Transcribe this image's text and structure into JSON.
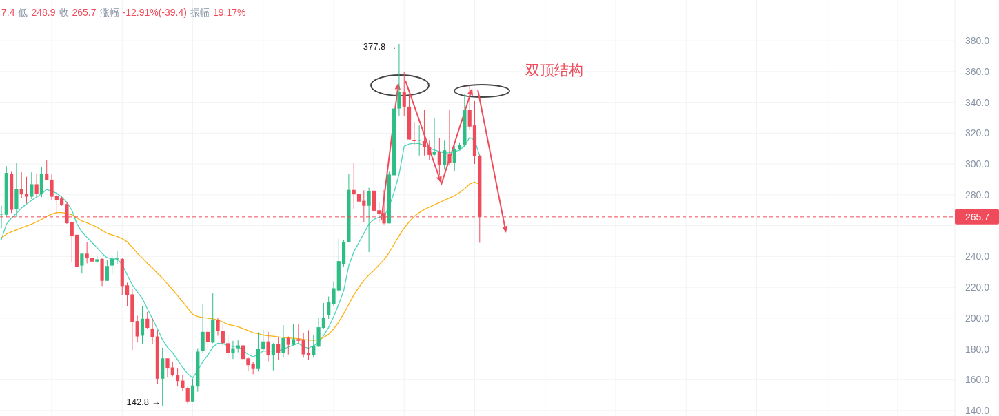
{
  "chart_data": {
    "type": "candlestick",
    "categories": [
      null,
      null,
      null,
      null,
      null,
      null,
      null,
      null,
      null,
      null,
      null,
      null,
      null,
      null,
      null,
      null,
      null,
      null,
      null,
      null,
      null,
      null,
      null,
      null,
      null,
      null,
      null,
      null,
      null,
      null,
      null,
      null,
      null,
      null,
      null,
      null,
      null,
      null,
      null,
      null,
      null,
      null,
      null,
      null,
      null,
      null,
      null,
      null,
      null,
      null,
      null,
      null,
      null,
      null,
      null,
      null,
      null,
      null,
      null,
      null,
      null,
      null,
      null,
      null,
      null,
      null,
      null,
      null,
      null,
      null,
      null,
      null,
      null,
      null,
      null,
      null,
      null,
      null,
      null,
      null,
      null,
      null,
      null,
      null,
      null,
      null,
      null,
      null,
      null,
      null,
      null,
      null,
      null,
      null,
      null,
      null
    ],
    "ohlc": [
      [
        267.2,
        272.9,
        258.3,
        267.8
      ],
      [
        267.1,
        298.6,
        265.6,
        294.2
      ],
      [
        293.8,
        294.9,
        268.2,
        270.3
      ],
      [
        270.6,
        300.8,
        265.6,
        283.5
      ],
      [
        283.9,
        294.6,
        278.1,
        280.3
      ],
      [
        280.6,
        291.7,
        274.4,
        278.8
      ],
      [
        278.8,
        294.6,
        277.3,
        286.9
      ],
      [
        286.9,
        293.8,
        278.5,
        280.7
      ],
      [
        280.7,
        297.9,
        278.5,
        293.8
      ],
      [
        293.8,
        302.6,
        289.4,
        289.5
      ],
      [
        289.8,
        293.2,
        276.6,
        278.8
      ],
      [
        279.2,
        281,
        267.8,
        276.6
      ],
      [
        277.6,
        278.8,
        272.9,
        273.7
      ],
      [
        274,
        275.6,
        261.2,
        261.6
      ],
      [
        262.2,
        262.7,
        236.3,
        253.1
      ],
      [
        254.1,
        254.6,
        232.1,
        233.3
      ],
      [
        234.1,
        241.8,
        228.9,
        241.8
      ],
      [
        241.8,
        249.2,
        235.5,
        238.9
      ],
      [
        239.2,
        245.1,
        235.5,
        236.7
      ],
      [
        236.7,
        240.2,
        235.8,
        238.2
      ],
      [
        238.4,
        239.2,
        220.8,
        224.2
      ],
      [
        224.2,
        237.7,
        224.2,
        233.8
      ],
      [
        234.1,
        239.9,
        228.6,
        238.4
      ],
      [
        238.2,
        243.3,
        235.2,
        238.7
      ],
      [
        238.4,
        238.9,
        214.7,
        220.8
      ],
      [
        221.3,
        223,
        207.6,
        215
      ],
      [
        215.4,
        219.1,
        179.3,
        197.7
      ],
      [
        198.1,
        201.5,
        184.2,
        188.1
      ],
      [
        188.6,
        207.6,
        183.1,
        199.6
      ],
      [
        199.6,
        204,
        193.2,
        193.7
      ],
      [
        193.3,
        200.3,
        183.4,
        187.8
      ],
      [
        188.1,
        192.2,
        157.5,
        160.7
      ],
      [
        160.7,
        180.8,
        142.8,
        173.9
      ],
      [
        173.9,
        173.9,
        161.4,
        167.3
      ],
      [
        168,
        171.7,
        162.2,
        162.9
      ],
      [
        163.3,
        167.3,
        155.6,
        159.2
      ],
      [
        159.5,
        162.9,
        152.9,
        154.4
      ],
      [
        154.8,
        155.6,
        144.1,
        146
      ],
      [
        146,
        160.7,
        145.7,
        156.3
      ],
      [
        155.6,
        180.5,
        152.3,
        178.3
      ],
      [
        178.6,
        209.1,
        177.3,
        191.1
      ],
      [
        191.1,
        193,
        179.8,
        184.5
      ],
      [
        184.2,
        216,
        183.7,
        199.1
      ],
      [
        198.8,
        200.3,
        188.6,
        191.8
      ],
      [
        191.8,
        196.6,
        182,
        183.7
      ],
      [
        183.7,
        189,
        173.9,
        177.3
      ],
      [
        177.3,
        185.3,
        173.5,
        180.5
      ],
      [
        180.5,
        185.6,
        177.8,
        182.3
      ],
      [
        182.3,
        182.7,
        172,
        173.5
      ],
      [
        173.9,
        174.9,
        165.4,
        169.5
      ],
      [
        170.2,
        171.7,
        163.6,
        167
      ],
      [
        167,
        190.8,
        165.4,
        180.2
      ],
      [
        179.8,
        192.5,
        179,
        184.9
      ],
      [
        184.9,
        191.1,
        172,
        175.8
      ],
      [
        175.8,
        183.7,
        166.1,
        183.1
      ],
      [
        183.1,
        187.8,
        172.9,
        177.3
      ],
      [
        177.3,
        195.5,
        174.3,
        187.1
      ],
      [
        187.1,
        188.1,
        176.4,
        182.7
      ],
      [
        182.7,
        196.3,
        182.3,
        186.4
      ],
      [
        186.4,
        196.3,
        183.7,
        185.3
      ],
      [
        186.1,
        190.5,
        174.3,
        176.5
      ],
      [
        177.6,
        192.2,
        172.9,
        175.8
      ],
      [
        176.1,
        188.9,
        174.3,
        181.7
      ],
      [
        181.5,
        200.3,
        181.2,
        194.1
      ],
      [
        193.7,
        209.8,
        193.3,
        200.3
      ],
      [
        201.8,
        214,
        199.5,
        210.6
      ],
      [
        209.3,
        223.8,
        208,
        219.4
      ],
      [
        218,
        251.5,
        217,
        237
      ],
      [
        234.8,
        250.6,
        233.5,
        249.5
      ],
      [
        249.1,
        293.7,
        249.1,
        283.2
      ],
      [
        283.2,
        300.8,
        270.7,
        280.3
      ],
      [
        280.5,
        286.8,
        270.3,
        275.6
      ],
      [
        276.1,
        282.9,
        262.4,
        272.9
      ],
      [
        272.9,
        284.6,
        242.8,
        282.4
      ],
      [
        282.7,
        310.3,
        267.1,
        269.7
      ],
      [
        270,
        275.1,
        262.4,
        267.8
      ],
      [
        268.2,
        283.2,
        260.9,
        261.5
      ],
      [
        261.5,
        294.9,
        261.5,
        293.2
      ],
      [
        292.7,
        339.6,
        292,
        336
      ],
      [
        336,
        377.8,
        330.9,
        347
      ],
      [
        347,
        359.8,
        331.3,
        337.2
      ],
      [
        337.2,
        344.8,
        315.9,
        315.9
      ],
      [
        315.7,
        327.2,
        312.5,
        315.2
      ],
      [
        315.2,
        325,
        305.5,
        315.4
      ],
      [
        315.2,
        335.3,
        305.5,
        311.1
      ],
      [
        311.1,
        315.5,
        302.3,
        305.9
      ],
      [
        306,
        330,
        305,
        308
      ],
      [
        307.8,
        316.9,
        292.7,
        299.6
      ],
      [
        299.6,
        315.5,
        296.4,
        308.9
      ],
      [
        306.7,
        335.3,
        299,
        300.5
      ],
      [
        300.5,
        311.8,
        295.2,
        309.9
      ],
      [
        309.9,
        314,
        308.9,
        312.5
      ],
      [
        312.5,
        345.5,
        311,
        335.3
      ],
      [
        335.3,
        351,
        322,
        324.3
      ],
      [
        325,
        341.1,
        300,
        305.1
      ],
      [
        305.2,
        306,
        248.9,
        265.7
      ]
    ],
    "colors": [
      "#2ebd85",
      "#2ebd85",
      "#f04b5a",
      "#2ebd85",
      "#f04b5a",
      "#f04b5a",
      "#2ebd85",
      "#f04b5a",
      "#2ebd85",
      "#f04b5a",
      "#f04b5a",
      "#f04b5a",
      "#f04b5a",
      "#f04b5a",
      "#f04b5a",
      "#f04b5a",
      "#2ebd85",
      "#f04b5a",
      "#f04b5a",
      "#2ebd85",
      "#f04b5a",
      "#2ebd85",
      "#2ebd85",
      "#2ebd85",
      "#f04b5a",
      "#f04b5a",
      "#f04b5a",
      "#f04b5a",
      "#2ebd85",
      "#f04b5a",
      "#f04b5a",
      "#f04b5a",
      "#2ebd85",
      "#f04b5a",
      "#f04b5a",
      "#f04b5a",
      "#f04b5a",
      "#f04b5a",
      "#2ebd85",
      "#2ebd85",
      "#2ebd85",
      "#f04b5a",
      "#2ebd85",
      "#f04b5a",
      "#f04b5a",
      "#f04b5a",
      "#2ebd85",
      "#2ebd85",
      "#f04b5a",
      "#f04b5a",
      "#f04b5a",
      "#2ebd85",
      "#2ebd85",
      "#f04b5a",
      "#2ebd85",
      "#f04b5a",
      "#2ebd85",
      "#f04b5a",
      "#2ebd85",
      "#f04b5a",
      "#f04b5a",
      "#f04b5a",
      "#2ebd85",
      "#2ebd85",
      "#2ebd85",
      "#2ebd85",
      "#2ebd85",
      "#2ebd85",
      "#2ebd85",
      "#2ebd85",
      "#f04b5a",
      "#f04b5a",
      "#f04b5a",
      "#2ebd85",
      "#f04b5a",
      "#f04b5a",
      "#f04b5a",
      "#2ebd85",
      "#2ebd85",
      "#2ebd85",
      "#f04b5a",
      "#f04b5a",
      "#f04b5a",
      "#2ebd85",
      "#f04b5a",
      "#f04b5a",
      "#2ebd85",
      "#f04b5a",
      "#2ebd85",
      "#f04b5a",
      "#2ebd85",
      "#2ebd85",
      "#2ebd85",
      "#f04b5a",
      "#f04b5a",
      "#f04b5a"
    ],
    "series": [
      {
        "type": "line",
        "color": "#48d6bb",
        "values": [
          251,
          261,
          265,
          268,
          271.5,
          274,
          276.5,
          278.5,
          280.7,
          283.5,
          282.5,
          281,
          278.5,
          275.1,
          270,
          261.2,
          256,
          252.4,
          249,
          245.8,
          242,
          239.2,
          238.5,
          238.4,
          234.8,
          228,
          221.6,
          217,
          212.8,
          206,
          199.6,
          193,
          186,
          181,
          177.6,
          173,
          168,
          164,
          161.2,
          166,
          171.7,
          176,
          181.2,
          183.7,
          183.5,
          182,
          181.7,
          181.7,
          179,
          176.5,
          174.9,
          176.5,
          178.6,
          178.7,
          178.7,
          178.7,
          180,
          181.2,
          182.5,
          183.7,
          181.5,
          180.5,
          182,
          184.2,
          188.6,
          194,
          201,
          209,
          218,
          234,
          243,
          249,
          255,
          261,
          264.1,
          265.5,
          266.3,
          272,
          281.7,
          293.4,
          311.5,
          313,
          313.5,
          313.2,
          312,
          310.3,
          309,
          308.1,
          307,
          307.4,
          308,
          308.9,
          312,
          317.2,
          315.5,
          305.2
        ]
      },
      {
        "type": "line",
        "color": "#fdb10f",
        "values": [
          252,
          254.5,
          256,
          257.3,
          258.5,
          259.8,
          261,
          262.5,
          264,
          266,
          267.5,
          268.5,
          268.5,
          268,
          267,
          265,
          263,
          261.9,
          260.5,
          259,
          257,
          255,
          254,
          253,
          251.5,
          249.5,
          246,
          242.1,
          239,
          235.5,
          232.6,
          229,
          226,
          222,
          218.6,
          214.5,
          210.6,
          206.5,
          202.5,
          201,
          200.3,
          200,
          199.6,
          198.8,
          197.5,
          195.9,
          195.2,
          194.4,
          193.2,
          192,
          190.5,
          190,
          189,
          188.5,
          188.3,
          187.8,
          187.5,
          187.1,
          186.9,
          186.7,
          186.2,
          185.8,
          185.6,
          186,
          187.5,
          189.5,
          193,
          197.5,
          203,
          209,
          215,
          220,
          224.5,
          228,
          231,
          234.5,
          238,
          242.5,
          248,
          253.5,
          258.5,
          262.5,
          266,
          268.5,
          270.5,
          272,
          273.5,
          275,
          276.5,
          278,
          279.5,
          281.5,
          284,
          287,
          288.3,
          286.8
        ]
      }
    ],
    "ylim": [
      136.5,
      406.4
    ],
    "yticks": [
      {
        "value": 140,
        "label": "140.0"
      },
      {
        "value": 160,
        "label": "160.0"
      },
      {
        "value": 180,
        "label": "180.0"
      },
      {
        "value": 200,
        "label": "200.0"
      },
      {
        "value": 220,
        "label": "220.0"
      },
      {
        "value": 240,
        "label": "240.0"
      },
      {
        "value": 260,
        "label": null
      },
      {
        "value": 280,
        "label": "280.0"
      },
      {
        "value": 300,
        "label": "300.0"
      },
      {
        "value": 320,
        "label": "320.0"
      },
      {
        "value": 340,
        "label": "340.0"
      },
      {
        "value": 360,
        "label": "360.0"
      },
      {
        "value": 380,
        "label": "380.0"
      }
    ],
    "grid": true,
    "ref_lines": [
      {
        "axis": "y",
        "value": 265.7,
        "label": "265.7",
        "color": "#f04b5a",
        "line_style": "dashed"
      }
    ],
    "annotations": [
      "7.4 低 248.9 收 265.7 涨幅 -12.91%(-39.4) 振幅 19.17%",
      "377.8 →",
      "142.8 →",
      "双顶结构"
    ]
  }
}
